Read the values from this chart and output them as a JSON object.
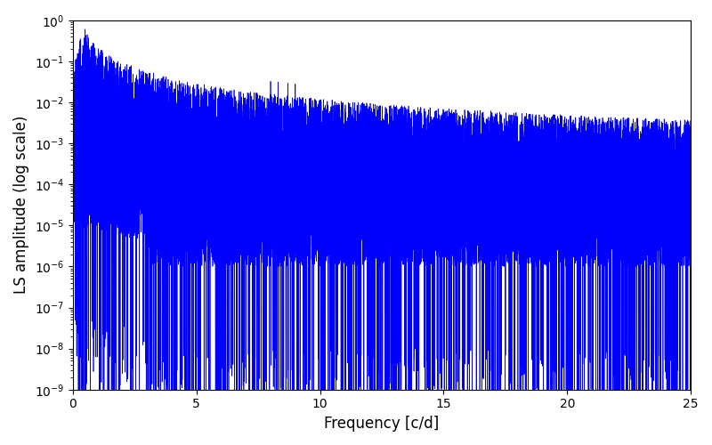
{
  "xlabel": "Frequency [c/d]",
  "ylabel": "LS amplitude (log scale)",
  "xlim": [
    0,
    25
  ],
  "ylim": [
    1e-09,
    1.0
  ],
  "line_color": "#0000ff",
  "linewidth": 0.5,
  "figsize": [
    8.0,
    5.0
  ],
  "dpi": 100,
  "seed": 12345,
  "n_points": 15000,
  "background_color": "#ffffff"
}
